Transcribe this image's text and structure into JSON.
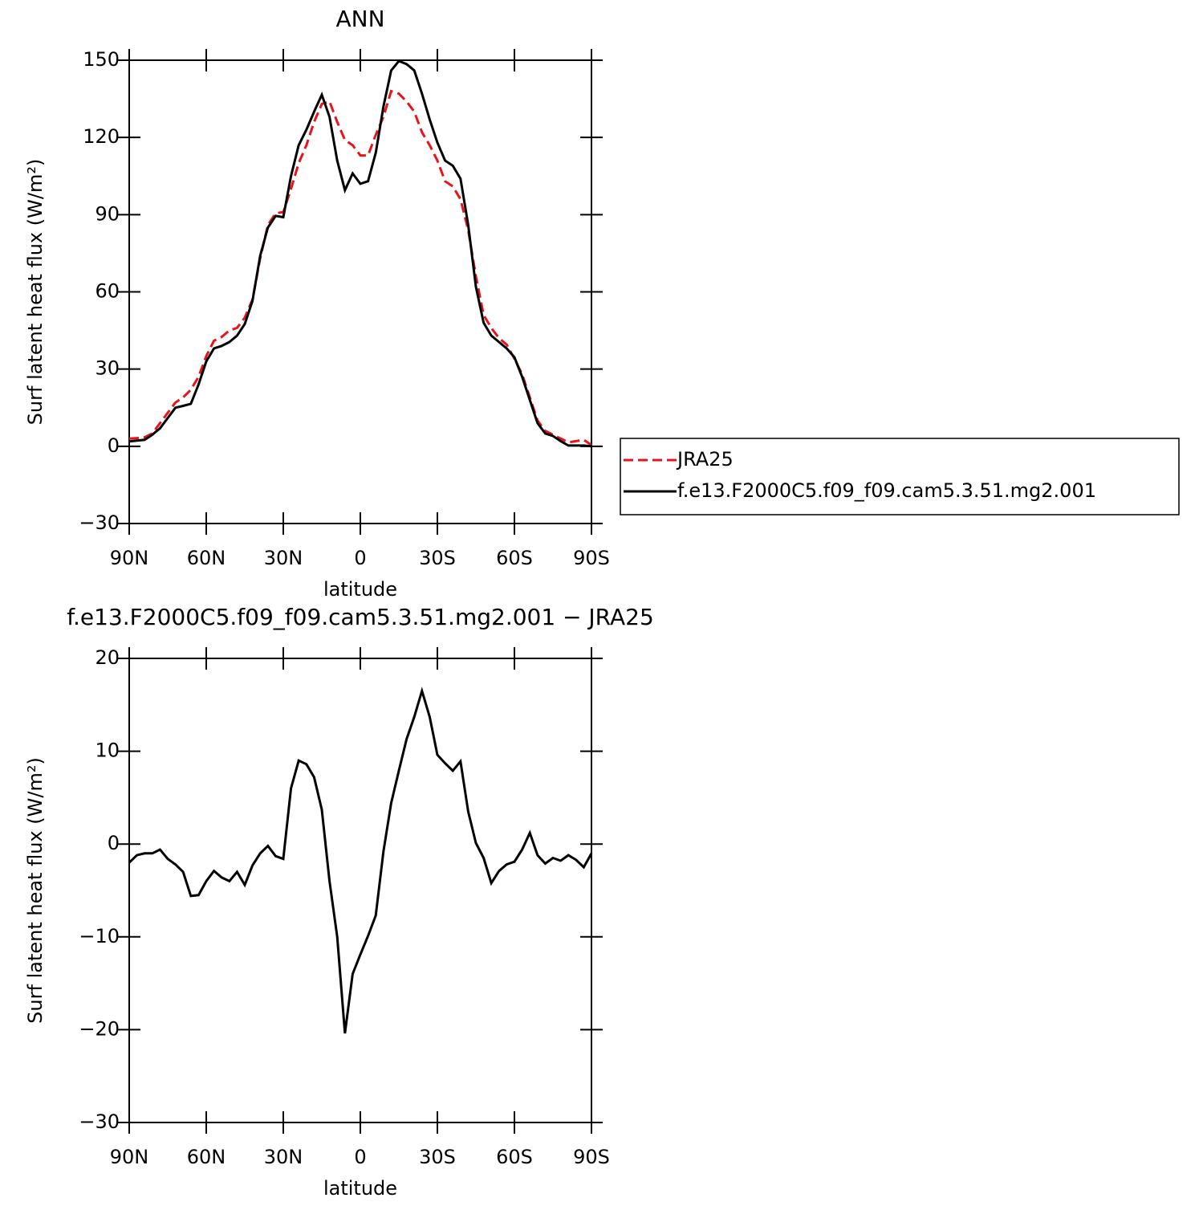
{
  "chart_data": [
    {
      "type": "line",
      "title": "ANN",
      "xlabel": "latitude",
      "ylabel": "Surf latent heat flux (W/m²)",
      "x": [
        90,
        87,
        84,
        81,
        78,
        75,
        72,
        69,
        66,
        63,
        60,
        57,
        54,
        51,
        48,
        45,
        42,
        39,
        36,
        33,
        30,
        27,
        24,
        21,
        18,
        15,
        12,
        9,
        6,
        3,
        0,
        -3,
        -6,
        -9,
        -12,
        -15,
        -18,
        -21,
        -24,
        -27,
        -30,
        -33,
        -36,
        -39,
        -42,
        -45,
        -48,
        -51,
        -54,
        -57,
        -60,
        -63,
        -66,
        -69,
        -72,
        -75,
        -78,
        -81,
        -84,
        -87,
        -90
      ],
      "xlim": [
        90,
        -90
      ],
      "xticks": [
        {
          "value": 90,
          "label": "90N"
        },
        {
          "value": 60,
          "label": "60N"
        },
        {
          "value": 30,
          "label": "30N"
        },
        0,
        {
          "value": -30,
          "label": "30S"
        },
        {
          "value": -60,
          "label": "60S"
        },
        {
          "value": -90,
          "label": "90S"
        }
      ],
      "ylim": [
        -30,
        150
      ],
      "yticks": [
        {
          "value": -30,
          "label": "−30"
        },
        0,
        30,
        60,
        90,
        120,
        150
      ],
      "legend": "right",
      "series": [
        {
          "name": "JRA25",
          "color": "#e8141a",
          "line_style": "dashed",
          "values": [
            3,
            3.2,
            3.5,
            5,
            9,
            13,
            17,
            19,
            22,
            27,
            35,
            41,
            42.5,
            45,
            46,
            50,
            57,
            73,
            86,
            90.5,
            91,
            100,
            110,
            117,
            126,
            133,
            134,
            126,
            119,
            117,
            113,
            113,
            121,
            128,
            138,
            137,
            134,
            130,
            122,
            117,
            111,
            103,
            101,
            96,
            84,
            66,
            51,
            46,
            42,
            39.5,
            34,
            28,
            19,
            10,
            6,
            4.5,
            3,
            1.5,
            2,
            2.5,
            0.5
          ]
        },
        {
          "name": "f.e13.F2000C5.f09_f09.cam5.3.51.mg2.001",
          "color": "#000000",
          "line_style": "solid",
          "values": [
            1.9,
            2.2,
            2.5,
            4.5,
            7,
            11,
            15,
            15.7,
            16.5,
            24,
            33,
            38,
            39,
            40.5,
            43,
            47.5,
            56.5,
            74,
            85,
            89.5,
            89,
            105,
            117,
            123,
            130,
            136.6,
            128,
            111,
            99.5,
            106,
            102,
            103,
            114,
            132,
            146,
            149.7,
            148.5,
            146,
            137,
            127,
            118,
            111,
            109,
            104,
            86,
            62,
            48,
            43,
            40.5,
            38,
            34.6,
            27,
            18,
            9,
            5,
            4,
            2,
            0.3,
            0.3,
            0.3,
            0
          ]
        }
      ]
    },
    {
      "type": "line",
      "title": "f.e13.F2000C5.f09_f09.cam5.3.51.mg2.001 − JRA25",
      "xlabel": "latitude",
      "ylabel": "Surf latent heat flux (W/m²)",
      "x": [
        90,
        87,
        84,
        81,
        78,
        75,
        72,
        69,
        66,
        63,
        60,
        57,
        54,
        51,
        48,
        45,
        42,
        39,
        36,
        33,
        30,
        27,
        24,
        21,
        18,
        15,
        12,
        9,
        6,
        3,
        0,
        -3,
        -6,
        -9,
        -12,
        -15,
        -18,
        -21,
        -24,
        -27,
        -30,
        -33,
        -36,
        -39,
        -42,
        -45,
        -48,
        -51,
        -54,
        -57,
        -60,
        -63,
        -66,
        -69,
        -72,
        -75,
        -78,
        -81,
        -84,
        -87,
        -90
      ],
      "xlim": [
        90,
        -90
      ],
      "xticks": [
        {
          "value": 90,
          "label": "90N"
        },
        {
          "value": 60,
          "label": "60N"
        },
        {
          "value": 30,
          "label": "30N"
        },
        0,
        {
          "value": -30,
          "label": "30S"
        },
        {
          "value": -60,
          "label": "60S"
        },
        {
          "value": -90,
          "label": "90S"
        }
      ],
      "ylim": [
        -30,
        20
      ],
      "yticks": [
        {
          "value": -30,
          "label": "−30"
        },
        {
          "value": -20,
          "label": "−20"
        },
        {
          "value": -10,
          "label": "−10"
        },
        0,
        10,
        20
      ],
      "color": "#000000",
      "values": [
        -2,
        -1.2,
        -1,
        -1,
        -0.6,
        -1.6,
        -2.2,
        -3,
        -5.6,
        -5.5,
        -4,
        -2.9,
        -3.6,
        -4,
        -3,
        -4.4,
        -2.3,
        -1,
        -0.2,
        -1.3,
        -1.6,
        6,
        9,
        8.6,
        7.2,
        3.7,
        -4,
        -10,
        -20.4,
        -14,
        -11.9,
        -9.9,
        -7.7,
        -0.8,
        4.4,
        7.9,
        11.3,
        13.7,
        16.5,
        13.7,
        9.6,
        8.7,
        7.9,
        8.9,
        3.5,
        0.1,
        -1.5,
        -4.2,
        -2.9,
        -2.2,
        -1.9,
        -0.6,
        1.2,
        -1.2,
        -2.1,
        -1.5,
        -1.8,
        -1.2,
        -1.7,
        -2.5,
        -1
      ]
    }
  ]
}
